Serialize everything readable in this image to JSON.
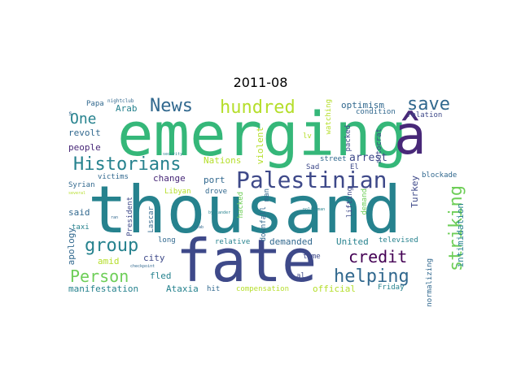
{
  "title": "2011-08",
  "palette": [
    "#440154",
    "#482878",
    "#3e4989",
    "#31688e",
    "#26828e",
    "#1f9e89",
    "#35b779",
    "#6ece58",
    "#b5de2b",
    "#fde725"
  ],
  "words": [
    {
      "text": "thousand",
      "color": "#26828e"
    },
    {
      "text": "emerging",
      "color": "#35b779"
    },
    {
      "text": "fate",
      "color": "#3e4989"
    },
    {
      "text": "â",
      "color": "#482878"
    },
    {
      "text": "Palestinian",
      "color": "#3e4989"
    },
    {
      "text": "Historians",
      "color": "#26828e"
    },
    {
      "text": "News",
      "color": "#31688e"
    },
    {
      "text": "hundred",
      "color": "#b5de2b"
    },
    {
      "text": "save",
      "color": "#31688e"
    },
    {
      "text": "striking",
      "color": "#6ece58"
    },
    {
      "text": "group",
      "color": "#26828e"
    },
    {
      "text": "helping",
      "color": "#31688e"
    },
    {
      "text": "credit",
      "color": "#440154"
    },
    {
      "text": "Person",
      "color": "#6ece58"
    },
    {
      "text": "One",
      "color": "#26828e"
    },
    {
      "text": "optimism",
      "color": "#31688e"
    },
    {
      "text": "arrest",
      "color": "#3e4989"
    },
    {
      "text": "Nations",
      "color": "#b5de2b"
    },
    {
      "text": "change",
      "color": "#482878"
    },
    {
      "text": "port",
      "color": "#31688e"
    },
    {
      "text": "people",
      "color": "#482878"
    },
    {
      "text": "revolt",
      "color": "#31688e"
    },
    {
      "text": "Arab",
      "color": "#26828e"
    },
    {
      "text": "Turkey",
      "color": "#3e4989"
    },
    {
      "text": "demanded",
      "color": "#31688e"
    },
    {
      "text": "United",
      "color": "#26828e"
    },
    {
      "text": "manifestation",
      "color": "#26828e"
    },
    {
      "text": "Ataxia",
      "color": "#26828e"
    },
    {
      "text": "official",
      "color": "#b5de2b"
    },
    {
      "text": "intimidation",
      "color": "#26828e"
    },
    {
      "text": "apology",
      "color": "#31688e"
    },
    {
      "text": "fled",
      "color": "#26828e"
    },
    {
      "text": "city",
      "color": "#3e4989"
    },
    {
      "text": "amid",
      "color": "#b5de2b"
    },
    {
      "text": "said",
      "color": "#31688e"
    },
    {
      "text": "Syrian",
      "color": "#31688e"
    },
    {
      "text": "victims",
      "color": "#31688e"
    },
    {
      "text": "condition",
      "color": "#31688e"
    },
    {
      "text": "relation",
      "color": "#3e4989"
    },
    {
      "text": "packed",
      "color": "#3e4989"
    },
    {
      "text": "street",
      "color": "#31688e"
    },
    {
      "text": "autocrat",
      "color": "#3e4989"
    },
    {
      "text": "blockade",
      "color": "#31688e"
    },
    {
      "text": "watching",
      "color": "#b5de2b"
    },
    {
      "text": "violent",
      "color": "#b5de2b"
    },
    {
      "text": "lv",
      "color": "#b5de2b"
    },
    {
      "text": "Sad",
      "color": "#3e4989"
    },
    {
      "text": "El",
      "color": "#3e4989"
    },
    {
      "text": "downfall",
      "color": "#31688e"
    },
    {
      "text": "hacked",
      "color": "#6ece58"
    },
    {
      "text": "drove",
      "color": "#31688e"
    },
    {
      "text": "Libyan",
      "color": "#b5de2b"
    },
    {
      "text": "lifting",
      "color": "#3e4989"
    },
    {
      "text": "demand",
      "color": "#6ece58"
    },
    {
      "text": "man",
      "color": "#31688e"
    },
    {
      "text": "televised",
      "color": "#26828e"
    },
    {
      "text": "normalizing",
      "color": "#31688e"
    },
    {
      "text": "relative",
      "color": "#26828e"
    },
    {
      "text": "time",
      "color": "#3e4989"
    },
    {
      "text": "Friday",
      "color": "#26828e"
    },
    {
      "text": "compensation",
      "color": "#b5de2b"
    },
    {
      "text": "hit",
      "color": "#31688e"
    },
    {
      "text": "al",
      "color": "#3e4989"
    },
    {
      "text": "taxi",
      "color": "#26828e"
    },
    {
      "text": "long",
      "color": "#31688e"
    },
    {
      "text": "Lascar",
      "color": "#31688e"
    },
    {
      "text": "President",
      "color": "#3e4989"
    },
    {
      "text": "Papa",
      "color": "#31688e"
    },
    {
      "text": "nightclub",
      "color": "#31688e"
    },
    {
      "text": "s",
      "color": "#31688e"
    },
    {
      "text": "security",
      "color": "#26828e"
    },
    {
      "text": "several",
      "color": "#b5de2b"
    },
    {
      "text": "ran",
      "color": "#31688e"
    },
    {
      "text": "stab",
      "color": "#31688e"
    },
    {
      "text": "bystander",
      "color": "#26828e"
    },
    {
      "text": "policeman",
      "color": "#26828e"
    },
    {
      "text": "checkpoint",
      "color": "#31688e"
    }
  ]
}
